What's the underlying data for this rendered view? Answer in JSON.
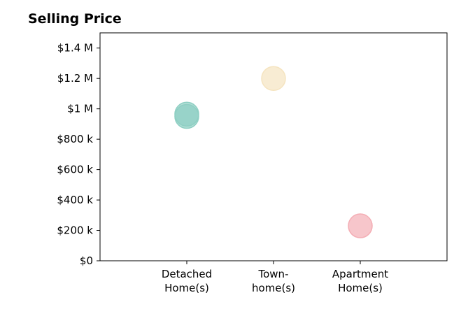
{
  "chart_data": {
    "type": "scatter",
    "title": "Selling Price",
    "xlabel": "",
    "ylabel": "",
    "categories": [
      "Detached\nHome(s)",
      "Town-\nhome(s)",
      "Apartment\nHome(s)"
    ],
    "ylim": [
      0,
      1500000
    ],
    "yticks": [
      {
        "value": 0,
        "label": "$0"
      },
      {
        "value": 200000,
        "label": "$200 k"
      },
      {
        "value": 400000,
        "label": "$400 k"
      },
      {
        "value": 600000,
        "label": "$600 k"
      },
      {
        "value": 800000,
        "label": "$800 k"
      },
      {
        "value": 1000000,
        "label": "$1 M"
      },
      {
        "value": 1200000,
        "label": "$1.2 M"
      },
      {
        "value": 1400000,
        "label": "$1.4 M"
      }
    ],
    "points": [
      {
        "category": "Detached\nHome(s)",
        "value": 965000,
        "color": "#8ecfc3"
      },
      {
        "category": "Detached\nHome(s)",
        "value": 950000,
        "color": "#8ecfc3"
      },
      {
        "category": "Town-\nhome(s)",
        "value": 1200000,
        "color": "#f5e4c0"
      },
      {
        "category": "Apartment\nHome(s)",
        "value": 230000,
        "color": "#f4aeb5"
      }
    ],
    "grid": false,
    "legend": "none"
  }
}
